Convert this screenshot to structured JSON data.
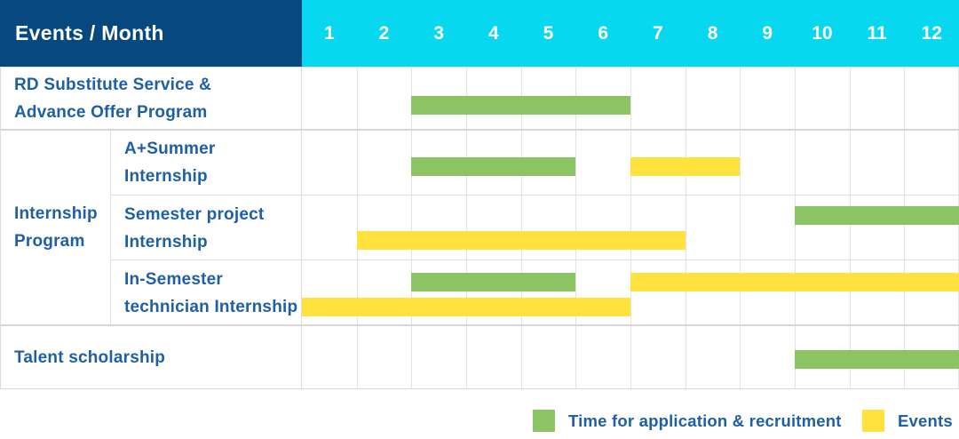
{
  "header": {
    "title": "Events / Month",
    "months": [
      "1",
      "2",
      "3",
      "4",
      "5",
      "6",
      "7",
      "8",
      "9",
      "10",
      "11",
      "12"
    ]
  },
  "legend": [
    {
      "key": "recruitment",
      "label": "Time for application & recruitment",
      "color": "#8CC463"
    },
    {
      "key": "events",
      "label": "Events",
      "color": "#FFE23D"
    }
  ],
  "colors": {
    "header_bg": "#07497F",
    "months_bg": "#07D8EF",
    "header_text": "#FFFFFF",
    "label_text": "#1E5FA6",
    "recruitment_green": "#8CC463",
    "events_yellow": "#FFE23D",
    "grid_line": "#E2E2E2",
    "row_line": "#D6D6D6"
  },
  "chart_data": {
    "type": "bar",
    "subtype": "gantt-schedule",
    "title": "Events / Month",
    "xlabel": "Month",
    "x_ticks": [
      1,
      2,
      3,
      4,
      5,
      6,
      7,
      8,
      9,
      10,
      11,
      12
    ],
    "x_range": [
      1,
      12
    ],
    "grid": true,
    "legend_position": "bottom-right",
    "series_legend": {
      "recruitment": "Time for application & recruitment",
      "events": "Events"
    },
    "group_label": "Internship Program",
    "group_label_lines": [
      "Internship",
      "Program"
    ],
    "rows": [
      {
        "group": "",
        "label": "RD Substitute Service & Advance Offer Program",
        "label_lines": [
          "RD Substitute Service &",
          "Advance Offer Program"
        ],
        "segments": [
          {
            "series": "recruitment",
            "start_month": 3,
            "end_month": 6,
            "lane": "single"
          }
        ]
      },
      {
        "group": "Internship Program",
        "label": "A+Summer Internship",
        "label_lines": [
          "A+Summer",
          "Internship"
        ],
        "segments": [
          {
            "series": "recruitment",
            "start_month": 3,
            "end_month": 5,
            "lane": "single"
          },
          {
            "series": "events",
            "start_month": 7,
            "end_month": 8,
            "lane": "single"
          }
        ]
      },
      {
        "group": "Internship Program",
        "label": "Semester project Internship",
        "label_lines": [
          "Semester project",
          "Internship"
        ],
        "segments": [
          {
            "series": "recruitment",
            "start_month": 10,
            "end_month": 12,
            "lane": "top"
          },
          {
            "series": "events",
            "start_month": 2,
            "end_month": 7,
            "lane": "bottom"
          }
        ]
      },
      {
        "group": "Internship Program",
        "label": "In-Semester technician Internship",
        "label_lines": [
          "In-Semester",
          "technician Internship"
        ],
        "segments": [
          {
            "series": "recruitment",
            "start_month": 3,
            "end_month": 5,
            "lane": "top"
          },
          {
            "series": "events",
            "start_month": 7,
            "end_month": 12,
            "lane": "top"
          },
          {
            "series": "events",
            "start_month": 1,
            "end_month": 6,
            "lane": "bottom"
          }
        ]
      },
      {
        "group": "",
        "label": "Talent scholarship",
        "label_lines": [
          "Talent scholarship"
        ],
        "segments": [
          {
            "series": "recruitment",
            "start_month": 10,
            "end_month": 12,
            "lane": "single"
          }
        ]
      }
    ]
  }
}
